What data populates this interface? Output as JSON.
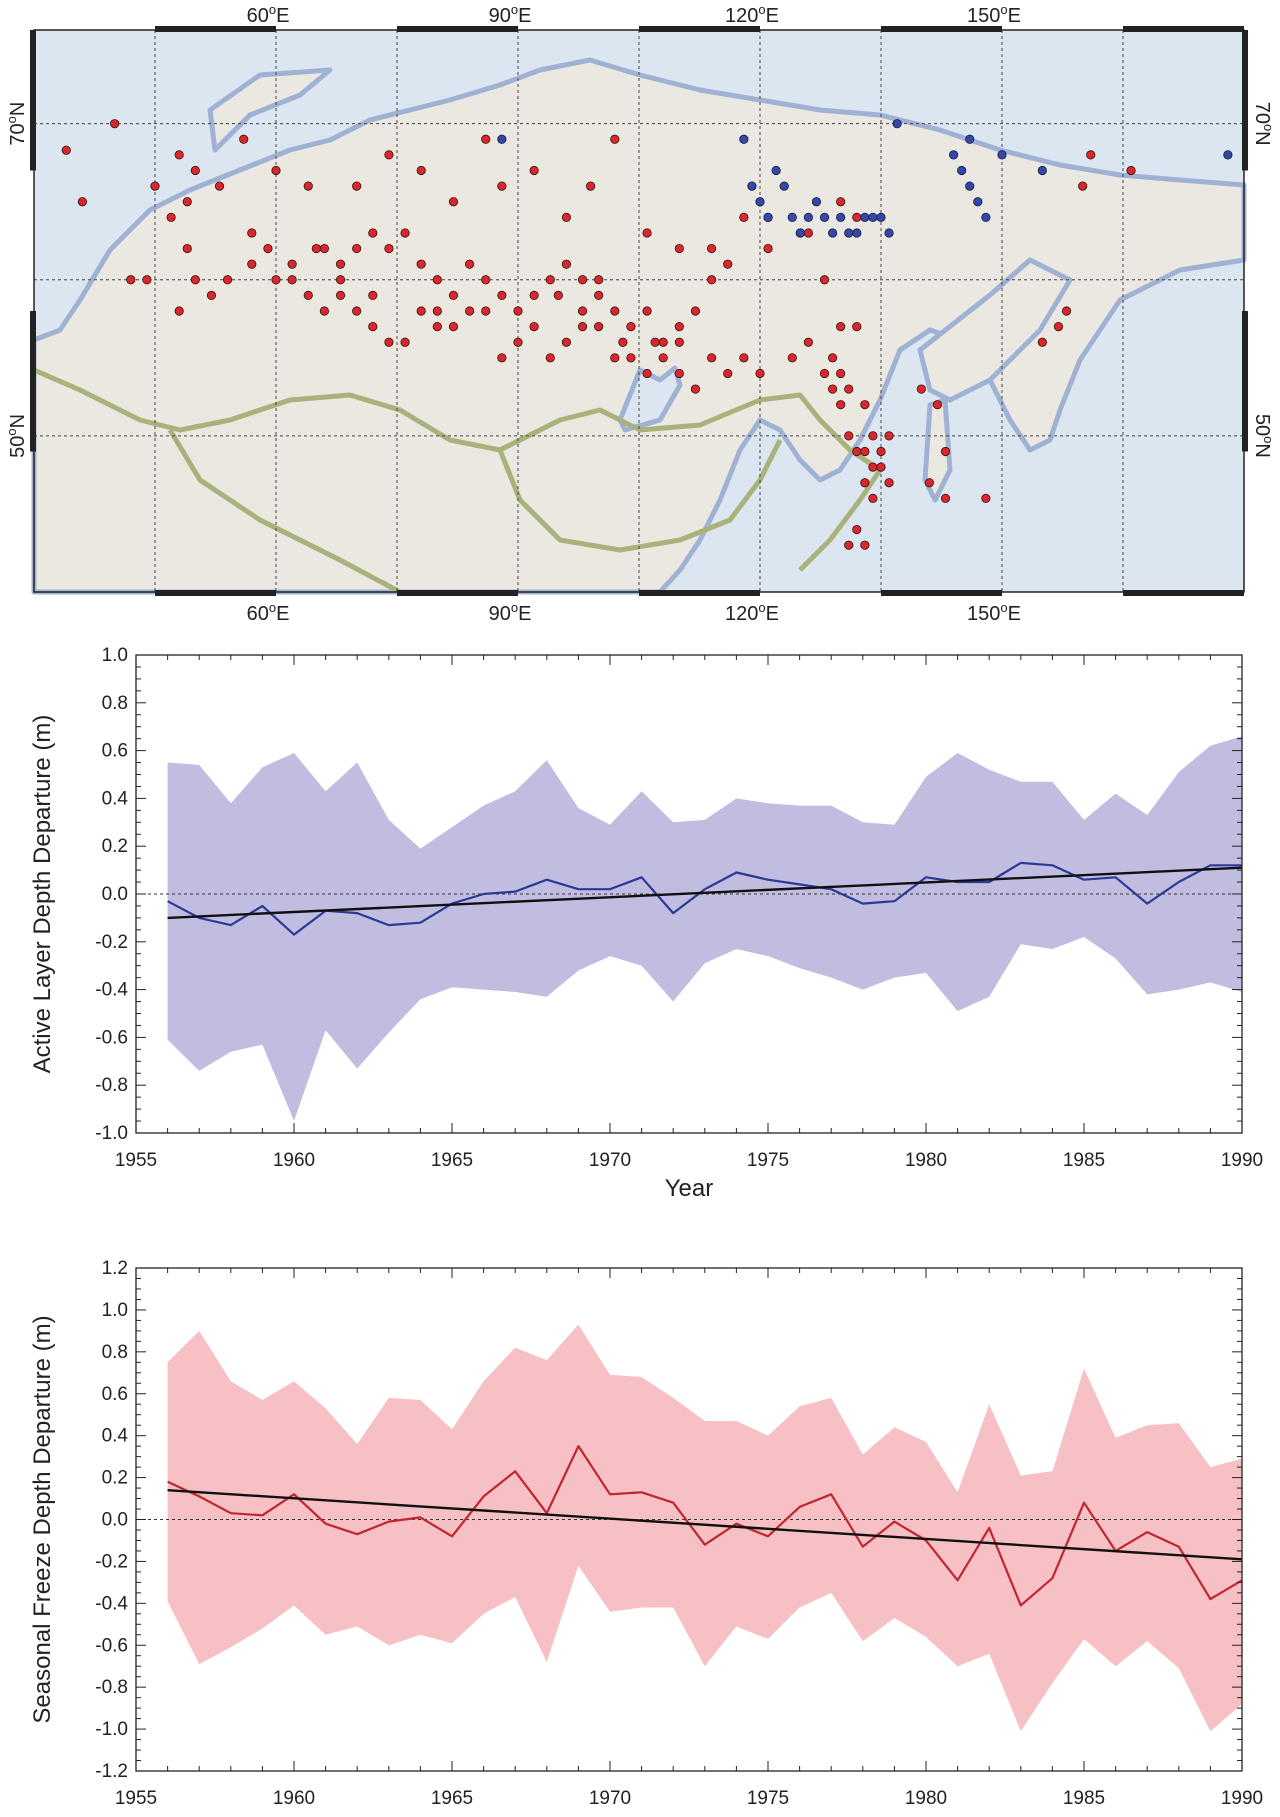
{
  "map": {
    "lon_labels": [
      "60",
      "90",
      "120",
      "150"
    ],
    "lon_suffix": "E",
    "lat_labels": [
      "70",
      "50"
    ],
    "lat_suffix": "N",
    "degree_mark": "o",
    "lon_range": [
      30,
      180
    ],
    "lat_range": [
      40,
      76
    ],
    "colors": {
      "ocean": "#dce6f0",
      "land": "#ebe8e2",
      "coast": "#9fb2d4",
      "border": "#a9b27a",
      "frame": "#222222"
    },
    "stations_red": [
      [
        34,
        68.3
      ],
      [
        36,
        65
      ],
      [
        40,
        70
      ],
      [
        42,
        60
      ],
      [
        44,
        60
      ],
      [
        45,
        66
      ],
      [
        47,
        64
      ],
      [
        48,
        58
      ],
      [
        49,
        65
      ],
      [
        49,
        62
      ],
      [
        50,
        60
      ],
      [
        52,
        59
      ],
      [
        54,
        60
      ],
      [
        57,
        63
      ],
      [
        60,
        60
      ],
      [
        62,
        60
      ],
      [
        65,
        62
      ],
      [
        68,
        60
      ],
      [
        72,
        59
      ],
      [
        78,
        58
      ],
      [
        80,
        57
      ],
      [
        82,
        57
      ],
      [
        84,
        58
      ],
      [
        88,
        55
      ],
      [
        92,
        57
      ],
      [
        95,
        59
      ],
      [
        98,
        58
      ],
      [
        100,
        60
      ],
      [
        103,
        56
      ],
      [
        107,
        56
      ],
      [
        110,
        56
      ],
      [
        114,
        55
      ],
      [
        118,
        55
      ],
      [
        121,
        62
      ],
      [
        125,
        63
      ],
      [
        128,
        60
      ],
      [
        130,
        57
      ],
      [
        132,
        57
      ],
      [
        129,
        53
      ],
      [
        130,
        54
      ],
      [
        131,
        53
      ],
      [
        133,
        52
      ],
      [
        136,
        50
      ],
      [
        135,
        49
      ],
      [
        134,
        48
      ],
      [
        133,
        47
      ],
      [
        134,
        46
      ],
      [
        132,
        44
      ],
      [
        131,
        43
      ],
      [
        133,
        43
      ],
      [
        140,
        53
      ],
      [
        142,
        52
      ],
      [
        143,
        49
      ],
      [
        141,
        47
      ],
      [
        143,
        46
      ],
      [
        148,
        46
      ],
      [
        155,
        56
      ],
      [
        157,
        57
      ],
      [
        158,
        58
      ],
      [
        160,
        66
      ],
      [
        161,
        68
      ],
      [
        166,
        67
      ],
      [
        48,
        68
      ],
      [
        50,
        67
      ],
      [
        53,
        66
      ],
      [
        56,
        69
      ],
      [
        60,
        67
      ],
      [
        64,
        66
      ],
      [
        70,
        66
      ],
      [
        74,
        68
      ],
      [
        78,
        67
      ],
      [
        82,
        65
      ],
      [
        86,
        69
      ],
      [
        88,
        66
      ],
      [
        92,
        67
      ],
      [
        96,
        64
      ],
      [
        99,
        66
      ],
      [
        102,
        69
      ],
      [
        106,
        63
      ],
      [
        110,
        62
      ],
      [
        114,
        62
      ],
      [
        118,
        64
      ],
      [
        121,
        64
      ],
      [
        126,
        63
      ],
      [
        130,
        65
      ],
      [
        132,
        64
      ],
      [
        66,
        62
      ],
      [
        68,
        61
      ],
      [
        70,
        62
      ],
      [
        72,
        63
      ],
      [
        74,
        62
      ],
      [
        76,
        63
      ],
      [
        78,
        61
      ],
      [
        80,
        60
      ],
      [
        84,
        61
      ],
      [
        86,
        60
      ],
      [
        88,
        59
      ],
      [
        90,
        58
      ],
      [
        92,
        59
      ],
      [
        94,
        60
      ],
      [
        96,
        61
      ],
      [
        98,
        60
      ],
      [
        100,
        59
      ],
      [
        102,
        58
      ],
      [
        104,
        57
      ],
      [
        106,
        58
      ],
      [
        108,
        56
      ],
      [
        110,
        57
      ],
      [
        112,
        58
      ],
      [
        114,
        60
      ],
      [
        116,
        61
      ],
      [
        57,
        61
      ],
      [
        59,
        62
      ],
      [
        62,
        61
      ],
      [
        64,
        59
      ],
      [
        66,
        58
      ],
      [
        68,
        59
      ],
      [
        70,
        58
      ],
      [
        72,
        57
      ],
      [
        74,
        56
      ],
      [
        76,
        56
      ],
      [
        80,
        58
      ],
      [
        82,
        59
      ],
      [
        86,
        58
      ],
      [
        90,
        56
      ],
      [
        94,
        55
      ],
      [
        96,
        56
      ],
      [
        98,
        57
      ],
      [
        100,
        57
      ],
      [
        102,
        55
      ],
      [
        104,
        55
      ],
      [
        106,
        54
      ],
      [
        108,
        55
      ],
      [
        110,
        54
      ],
      [
        112,
        53
      ],
      [
        116,
        54
      ],
      [
        120,
        54
      ],
      [
        124,
        55
      ],
      [
        126,
        56
      ],
      [
        128,
        54
      ],
      [
        129,
        55
      ],
      [
        130,
        52
      ],
      [
        131,
        50
      ],
      [
        132,
        49
      ],
      [
        133,
        49
      ],
      [
        134,
        50
      ],
      [
        135,
        48
      ],
      [
        136,
        47
      ]
    ],
    "stations_blue": [
      [
        88,
        69
      ],
      [
        118,
        69
      ],
      [
        122,
        67
      ],
      [
        123,
        66
      ],
      [
        119,
        66
      ],
      [
        120,
        65
      ],
      [
        121,
        64
      ],
      [
        124,
        64
      ],
      [
        125,
        63
      ],
      [
        126,
        64
      ],
      [
        127,
        65
      ],
      [
        128,
        64
      ],
      [
        129,
        63
      ],
      [
        130,
        64
      ],
      [
        131,
        63
      ],
      [
        132,
        63
      ],
      [
        133,
        64
      ],
      [
        134,
        64
      ],
      [
        135,
        64
      ],
      [
        136,
        63
      ],
      [
        137,
        70
      ],
      [
        144,
        68
      ],
      [
        145,
        67
      ],
      [
        146,
        66
      ],
      [
        147,
        65
      ],
      [
        148,
        64
      ],
      [
        146,
        69
      ],
      [
        150,
        68
      ],
      [
        155,
        67
      ],
      [
        178,
        68
      ]
    ]
  },
  "charts": [
    {
      "chart_data": {
        "type": "line",
        "title": "",
        "xlabel": "Year",
        "ylabel": "Active Layer Depth Departure (m)",
        "xlim": [
          1955,
          1990
        ],
        "ylim": [
          -1.0,
          1.0
        ],
        "xticks": [
          1955,
          1960,
          1965,
          1970,
          1975,
          1980,
          1985,
          1990
        ],
        "yticks": [
          -1.0,
          -0.8,
          -0.6,
          -0.4,
          -0.2,
          0.0,
          0.2,
          0.4,
          0.6,
          0.8,
          1.0
        ],
        "x": [
          1956,
          1957,
          1958,
          1959,
          1960,
          1961,
          1962,
          1963,
          1964,
          1965,
          1966,
          1967,
          1968,
          1969,
          1970,
          1971,
          1972,
          1973,
          1974,
          1975,
          1976,
          1977,
          1978,
          1979,
          1980,
          1981,
          1982,
          1983,
          1984,
          1985,
          1986,
          1987,
          1988,
          1989,
          1990
        ],
        "mean": [
          -0.03,
          -0.1,
          -0.13,
          -0.05,
          -0.17,
          -0.07,
          -0.08,
          -0.13,
          -0.12,
          -0.04,
          0.0,
          0.01,
          0.06,
          0.02,
          0.02,
          0.07,
          -0.08,
          0.02,
          0.09,
          0.06,
          0.04,
          0.02,
          -0.04,
          -0.03,
          0.07,
          0.05,
          0.05,
          0.13,
          0.12,
          0.06,
          0.07,
          -0.04,
          0.05,
          0.12,
          0.12
        ],
        "upper": [
          0.55,
          0.54,
          0.38,
          0.53,
          0.59,
          0.43,
          0.55,
          0.31,
          0.19,
          0.28,
          0.37,
          0.43,
          0.56,
          0.36,
          0.29,
          0.43,
          0.3,
          0.31,
          0.4,
          0.38,
          0.37,
          0.37,
          0.3,
          0.29,
          0.49,
          0.59,
          0.52,
          0.47,
          0.47,
          0.31,
          0.42,
          0.33,
          0.51,
          0.62,
          0.66
        ],
        "lower": [
          -0.61,
          -0.74,
          -0.66,
          -0.63,
          -0.95,
          -0.57,
          -0.73,
          -0.58,
          -0.44,
          -0.39,
          -0.4,
          -0.41,
          -0.43,
          -0.32,
          -0.26,
          -0.3,
          -0.45,
          -0.29,
          -0.23,
          -0.26,
          -0.31,
          -0.35,
          -0.4,
          -0.35,
          -0.33,
          -0.49,
          -0.43,
          -0.21,
          -0.23,
          -0.18,
          -0.27,
          -0.42,
          -0.4,
          -0.37,
          -0.41
        ],
        "trend": [
          [
            1956,
            -0.1
          ],
          [
            1990,
            0.11
          ]
        ],
        "colors": {
          "band": "#c0bde0",
          "line": "#2b3a96",
          "trend": "#111111"
        }
      }
    },
    {
      "chart_data": {
        "type": "line",
        "title": "",
        "xlabel": "Year",
        "ylabel": "Seasonal Freeze Depth Departure (m)",
        "xlim": [
          1955,
          1990
        ],
        "ylim": [
          -1.2,
          1.2
        ],
        "xticks": [
          1955,
          1960,
          1965,
          1970,
          1975,
          1980,
          1985,
          1990
        ],
        "yticks": [
          -1.2,
          -1.0,
          -0.8,
          -0.6,
          -0.4,
          -0.2,
          0.0,
          0.2,
          0.4,
          0.6,
          0.8,
          1.0,
          1.2
        ],
        "x": [
          1956,
          1957,
          1958,
          1959,
          1960,
          1961,
          1962,
          1963,
          1964,
          1965,
          1966,
          1967,
          1968,
          1969,
          1970,
          1971,
          1972,
          1973,
          1974,
          1975,
          1976,
          1977,
          1978,
          1979,
          1980,
          1981,
          1982,
          1983,
          1984,
          1985,
          1986,
          1987,
          1988,
          1989,
          1990
        ],
        "mean": [
          0.18,
          0.11,
          0.03,
          0.02,
          0.12,
          -0.02,
          -0.07,
          -0.01,
          0.01,
          -0.08,
          0.11,
          0.23,
          0.03,
          0.35,
          0.12,
          0.13,
          0.08,
          -0.12,
          -0.02,
          -0.08,
          0.06,
          0.12,
          -0.13,
          -0.01,
          -0.1,
          -0.29,
          -0.04,
          -0.41,
          -0.28,
          0.08,
          -0.15,
          -0.06,
          -0.13,
          -0.38,
          -0.29
        ],
        "upper": [
          0.75,
          0.9,
          0.66,
          0.57,
          0.66,
          0.53,
          0.36,
          0.58,
          0.57,
          0.43,
          0.66,
          0.82,
          0.76,
          0.93,
          0.69,
          0.68,
          0.58,
          0.47,
          0.47,
          0.4,
          0.54,
          0.58,
          0.31,
          0.44,
          0.37,
          0.13,
          0.55,
          0.21,
          0.23,
          0.72,
          0.39,
          0.45,
          0.46,
          0.25,
          0.29
        ],
        "lower": [
          -0.39,
          -0.69,
          -0.61,
          -0.52,
          -0.41,
          -0.55,
          -0.51,
          -0.6,
          -0.55,
          -0.59,
          -0.45,
          -0.37,
          -0.68,
          -0.22,
          -0.44,
          -0.42,
          -0.42,
          -0.7,
          -0.51,
          -0.57,
          -0.42,
          -0.35,
          -0.58,
          -0.47,
          -0.56,
          -0.7,
          -0.64,
          -1.01,
          -0.78,
          -0.57,
          -0.7,
          -0.58,
          -0.71,
          -1.01,
          -0.88
        ],
        "trend": [
          [
            1956,
            0.14
          ],
          [
            1990,
            -0.19
          ]
        ],
        "colors": {
          "band": "#f7c0c4",
          "line": "#c0262d",
          "trend": "#111111"
        }
      }
    }
  ]
}
